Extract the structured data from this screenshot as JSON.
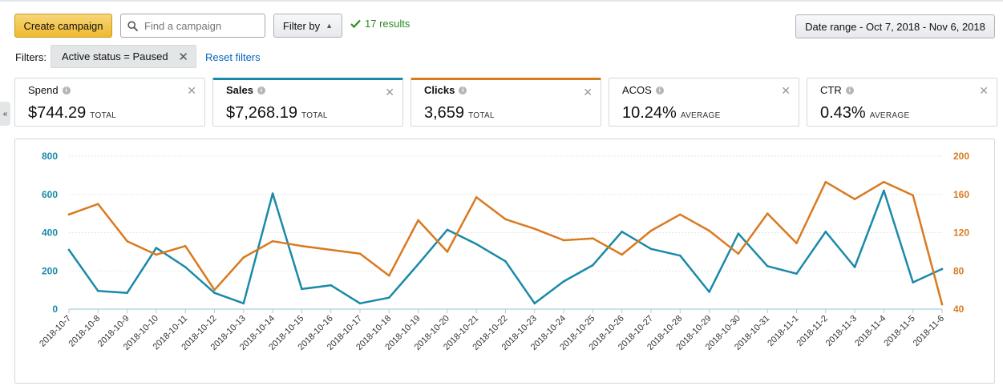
{
  "toolbar": {
    "create_label": "Create campaign",
    "search_placeholder": "Find a campaign",
    "filter_label": "Filter by",
    "results_text": "17 results",
    "date_range_label": "Date range - Oct 7, 2018 - Nov 6, 2018"
  },
  "filters": {
    "label": "Filters:",
    "chip_text": "Active status = Paused",
    "reset_label": "Reset filters"
  },
  "collapse_label": "«",
  "metrics": [
    {
      "label": "Spend",
      "value": "$744.29",
      "unit": "TOTAL"
    },
    {
      "label": "Sales",
      "value": "$7,268.19",
      "unit": "TOTAL"
    },
    {
      "label": "Clicks",
      "value": "3,659",
      "unit": "TOTAL"
    },
    {
      "label": "ACOS",
      "value": "10.24%",
      "unit": "AVERAGE"
    },
    {
      "label": "CTR",
      "value": "0.43%",
      "unit": "AVERAGE"
    }
  ],
  "colors": {
    "sales": "#1a8aa8",
    "clicks": "#d97a1f",
    "accent_button": "#f0b92e",
    "results_green": "#2e8b22",
    "link": "#0066c0"
  },
  "chart_data": {
    "type": "line",
    "x": [
      "2018-10-7",
      "2018-10-8",
      "2018-10-9",
      "2018-10-10",
      "2018-10-11",
      "2018-10-12",
      "2018-10-13",
      "2018-10-14",
      "2018-10-15",
      "2018-10-16",
      "2018-10-17",
      "2018-10-18",
      "2018-10-19",
      "2018-10-20",
      "2018-10-21",
      "2018-10-22",
      "2018-10-23",
      "2018-10-24",
      "2018-10-25",
      "2018-10-26",
      "2018-10-27",
      "2018-10-28",
      "2018-10-29",
      "2018-10-30",
      "2018-10-31",
      "2018-11-1",
      "2018-11-2",
      "2018-11-3",
      "2018-11-4",
      "2018-11-5",
      "2018-11-6"
    ],
    "series": [
      {
        "name": "Sales",
        "axis": "left",
        "color": "#1a8aa8",
        "values": [
          310,
          95,
          85,
          320,
          220,
          85,
          30,
          605,
          105,
          125,
          30,
          60,
          235,
          415,
          340,
          250,
          30,
          145,
          230,
          405,
          315,
          280,
          90,
          395,
          225,
          185,
          405,
          220,
          620,
          140,
          210
        ]
      },
      {
        "name": "Clicks",
        "axis": "right",
        "color": "#d97a1f",
        "values": [
          139,
          150,
          111,
          97,
          106,
          60,
          94,
          111,
          106,
          102,
          98,
          75,
          133,
          100,
          157,
          134,
          124,
          112,
          114,
          97,
          122,
          139,
          122,
          98,
          140,
          109,
          173,
          155,
          173,
          159,
          45
        ]
      }
    ],
    "y_left": {
      "min": 0,
      "max": 800,
      "ticks": [
        0,
        200,
        400,
        600,
        800
      ]
    },
    "y_right": {
      "min": 40,
      "max": 200,
      "ticks": [
        40,
        80,
        120,
        160,
        200
      ]
    },
    "grid": true
  }
}
